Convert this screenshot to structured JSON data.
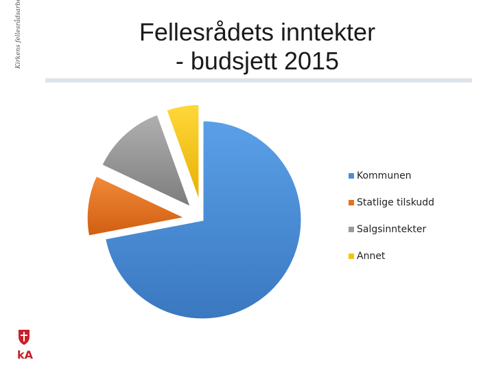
{
  "side_text": "Kirkens fellesrådsarbeid",
  "title": {
    "line1": "Fellesrådets inntekter",
    "line2": "- budsjett 2015"
  },
  "chart_data": {
    "type": "pie",
    "title": "Fellesrådets inntekter - budsjett 2015",
    "categories": [
      "Kommunen",
      "Statlige tilskudd",
      "Salgsinntekter",
      "Annet"
    ],
    "values": [
      72,
      10,
      12.5,
      5.5
    ],
    "colors": [
      "#4a8fd8",
      "#e8701f",
      "#9a9a9a",
      "#f6c400"
    ],
    "exploded": [
      false,
      true,
      true,
      true
    ],
    "legend_position": "right"
  },
  "logo": {
    "text": "kA",
    "icons": [
      "church-emblem-icon",
      "ka-logo-icon"
    ]
  }
}
